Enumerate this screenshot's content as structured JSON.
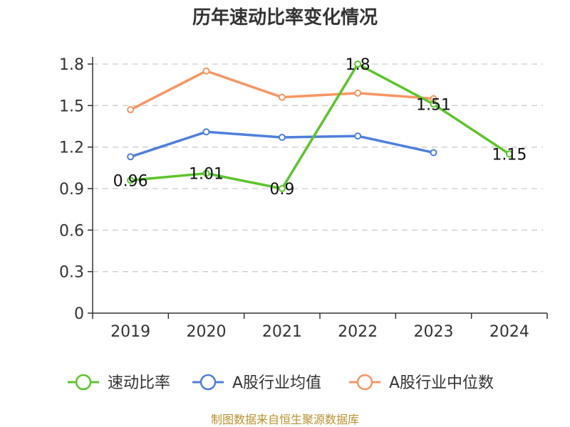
{
  "chart_data": {
    "type": "line",
    "title": "历年速动比率变化情况",
    "categories": [
      "2019",
      "2020",
      "2021",
      "2022",
      "2023",
      "2024"
    ],
    "yticks": [
      "0",
      "0.3",
      "0.6",
      "0.9",
      "1.2",
      "1.5",
      "1.8"
    ],
    "ylim": [
      0,
      1.8
    ],
    "grid": true,
    "legend_position": "bottom",
    "series": [
      {
        "name": "速动比率",
        "color": "#5cc52b",
        "values": [
          0.96,
          1.01,
          0.9,
          1.8,
          1.51,
          1.15
        ],
        "labels": [
          "0.96",
          "1.01",
          "0.9",
          "1.8",
          "1.51",
          "1.15"
        ]
      },
      {
        "name": "A股行业均值",
        "color": "#4f7fdc",
        "values": [
          1.13,
          1.31,
          1.27,
          1.28,
          1.16,
          null
        ]
      },
      {
        "name": "A股行业中位数",
        "color": "#f79563",
        "values": [
          1.47,
          1.75,
          1.56,
          1.59,
          1.55,
          null
        ]
      }
    ]
  },
  "source_text": "制图数据来自恒生聚源数据库"
}
